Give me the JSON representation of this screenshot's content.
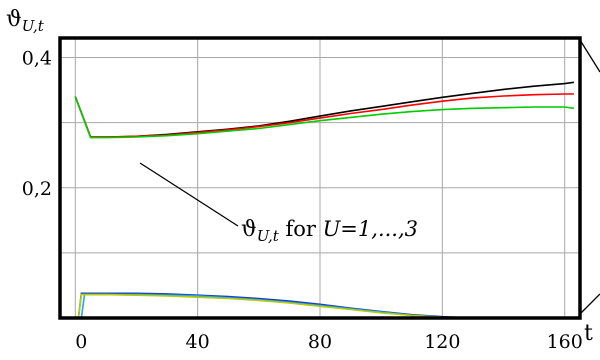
{
  "chart_data": {
    "type": "line",
    "ylabel": "ϑU,t",
    "ylabel_parts": {
      "symbol": "ϑ",
      "subscript": "U,t"
    },
    "xlabel": "t",
    "xlim": [
      -5,
      165
    ],
    "ylim": [
      0,
      0.43
    ],
    "grid": true,
    "x_ticks": [
      0,
      40,
      80,
      120,
      160
    ],
    "x_tick_labels": [
      "0",
      "40",
      "80",
      "120",
      "160"
    ],
    "y_ticks": [
      0.2,
      0.4
    ],
    "y_tick_labels": [
      "0,2",
      "0,4"
    ],
    "annotation": {
      "symbol": "ϑ",
      "subscript": "U,t",
      "middle": " for ",
      "tail": "U=1,...,3",
      "full": "ϑU,t for U=1,...,3"
    },
    "series": [
      {
        "color": "#000000",
        "x": [
          0,
          5,
          10,
          20,
          30,
          40,
          50,
          60,
          70,
          80,
          90,
          100,
          110,
          120,
          130,
          140,
          150,
          160,
          163
        ],
        "y": [
          0.34,
          0.278,
          0.278,
          0.279,
          0.282,
          0.286,
          0.29,
          0.295,
          0.302,
          0.31,
          0.318,
          0.325,
          0.332,
          0.339,
          0.345,
          0.351,
          0.356,
          0.36,
          0.362
        ]
      },
      {
        "color": "#ff0000",
        "x": [
          0,
          5,
          10,
          20,
          30,
          40,
          50,
          60,
          70,
          80,
          90,
          100,
          110,
          120,
          130,
          140,
          150,
          160,
          163
        ],
        "y": [
          0.34,
          0.278,
          0.278,
          0.279,
          0.281,
          0.285,
          0.289,
          0.294,
          0.3,
          0.307,
          0.314,
          0.32,
          0.327,
          0.333,
          0.338,
          0.341,
          0.343,
          0.344,
          0.344
        ]
      },
      {
        "color": "#00cc00",
        "x": [
          0,
          5,
          10,
          20,
          30,
          40,
          50,
          60,
          70,
          80,
          90,
          100,
          110,
          120,
          130,
          140,
          150,
          160,
          163
        ],
        "y": [
          0.34,
          0.277,
          0.277,
          0.278,
          0.28,
          0.283,
          0.287,
          0.291,
          0.297,
          0.303,
          0.308,
          0.313,
          0.317,
          0.32,
          0.322,
          0.323,
          0.324,
          0.324,
          0.322
        ]
      },
      {
        "color": "#1c3fbf",
        "x": [
          0,
          1,
          2,
          10,
          20,
          30,
          40,
          50,
          60,
          70,
          80,
          90,
          100,
          110,
          120,
          130,
          140,
          150,
          160,
          163
        ],
        "y": [
          0.0,
          0.0,
          0.038,
          0.038,
          0.038,
          0.037,
          0.035,
          0.033,
          0.03,
          0.026,
          0.021,
          0.015,
          0.01,
          0.005,
          0.002,
          0.0,
          0.0,
          0.0,
          0.0,
          0.0
        ]
      },
      {
        "color": "#22a8e8",
        "x": [
          0,
          2,
          3,
          10,
          20,
          30,
          40,
          50,
          60,
          70,
          80,
          90,
          100,
          110,
          120,
          130,
          140,
          150,
          160,
          163
        ],
        "y": [
          0.0,
          0.0,
          0.036,
          0.036,
          0.036,
          0.035,
          0.034,
          0.031,
          0.028,
          0.024,
          0.019,
          0.014,
          0.009,
          0.004,
          0.001,
          0.0,
          0.0,
          0.0,
          0.0,
          0.0
        ]
      },
      {
        "color": "#b5cc00",
        "x": [
          0,
          1,
          2,
          10,
          20,
          30,
          40,
          50,
          60,
          70,
          80,
          90,
          100,
          110,
          120,
          130,
          140,
          150,
          160,
          163
        ],
        "y": [
          0.0,
          0.0,
          0.036,
          0.036,
          0.035,
          0.034,
          0.032,
          0.03,
          0.027,
          0.023,
          0.018,
          0.013,
          0.008,
          0.004,
          0.001,
          0.0,
          0.0,
          0.0,
          0.0,
          0.0
        ]
      }
    ]
  }
}
